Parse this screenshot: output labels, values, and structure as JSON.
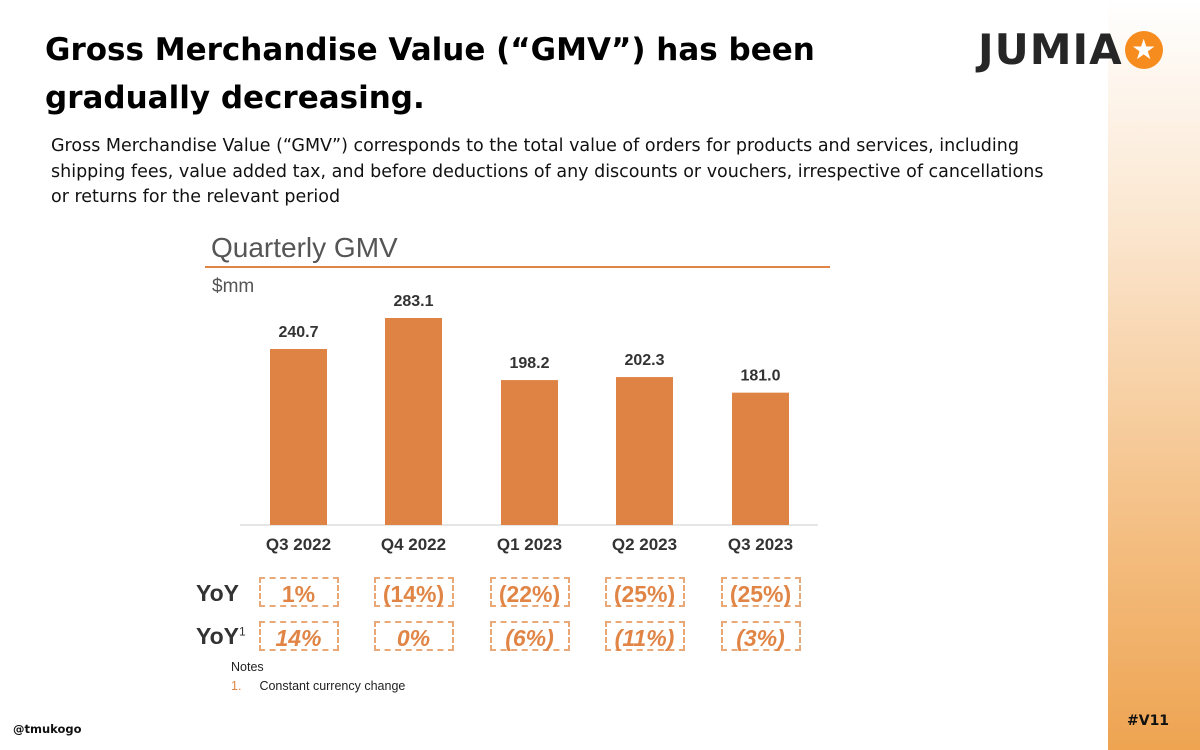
{
  "title": "Gross Merchandise Value (“GMV”) has  been gradually decreasing.",
  "description": "Gross Merchandise Value (“GMV”) corresponds to the total value of orders for products and services, including shipping fees, value added tax, and before deductions of any discounts or vouchers, irrespective of cancellations or returns for the relevant period",
  "logo": {
    "text": "JUMIA",
    "icon": "star-icon",
    "color": "#f68b1e"
  },
  "chart_data": {
    "type": "bar",
    "title": "Quarterly GMV",
    "ylabel": "$mm",
    "xlabel": "",
    "categories": [
      "Q3 2022",
      "Q4 2022",
      "Q1 2023",
      "Q2 2023",
      "Q3 2023"
    ],
    "values": [
      240.7,
      283.1,
      198.2,
      202.3,
      181.0
    ],
    "value_labels": [
      "240.7",
      "283.1",
      "198.2",
      "202.3",
      "181.0"
    ],
    "ylim": [
      0,
      300
    ],
    "grid": false,
    "bar_color": "#df8344",
    "yoy": {
      "label": "YoY",
      "values": [
        "1%",
        "(14%)",
        "(22%)",
        "(25%)",
        "(25%)"
      ]
    },
    "yoy_cc": {
      "label": "YoY",
      "sup": "1",
      "values": [
        "14%",
        "0%",
        "(6%)",
        "(11%)",
        "(3%)"
      ]
    }
  },
  "notes": {
    "heading": "Notes",
    "number": "1.",
    "text": "Constant currency change"
  },
  "handle": "@tmukogo",
  "tag": "#V11"
}
